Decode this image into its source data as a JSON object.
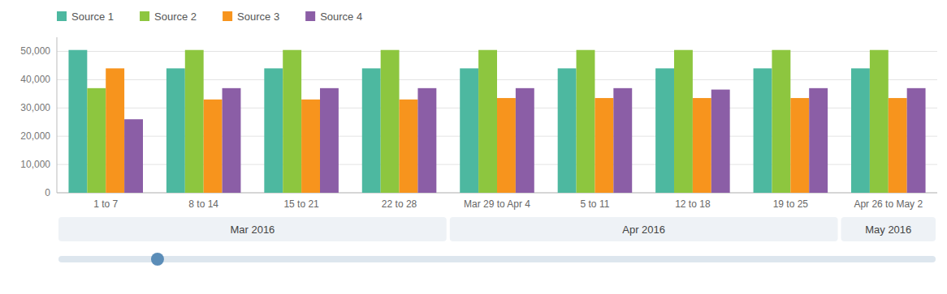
{
  "chart_data": {
    "type": "bar",
    "categories": [
      "1 to 7",
      "8 to 14",
      "15 to 21",
      "22 to 28",
      "Mar 29 to Apr 4",
      "5 to 11",
      "12 to 18",
      "19 to 25",
      "Apr 26 to May 2"
    ],
    "series": [
      {
        "name": "Source 1",
        "color": "#4db8a0",
        "values": [
          50500,
          44000,
          44000,
          44000,
          44000,
          44000,
          44000,
          44000,
          44000
        ]
      },
      {
        "name": "Source 2",
        "color": "#8dc63f",
        "values": [
          37000,
          50500,
          50500,
          50500,
          50500,
          50500,
          50500,
          50500,
          50500
        ]
      },
      {
        "name": "Source 3",
        "color": "#f7941d",
        "values": [
          44000,
          33000,
          33000,
          33000,
          33500,
          33500,
          33500,
          33500,
          33500
        ]
      },
      {
        "name": "Source 4",
        "color": "#8b5ea6",
        "values": [
          26000,
          37000,
          37000,
          37000,
          37000,
          37000,
          36500,
          37000,
          37000
        ]
      }
    ],
    "ylim": [
      0,
      55000
    ],
    "yticks": [
      0,
      {
        "value": 10000,
        "label": "10,000"
      },
      {
        "value": 20000,
        "label": "20,000"
      },
      {
        "value": 30000,
        "label": "30,000"
      },
      {
        "value": 40000,
        "label": "40,000"
      },
      {
        "value": 50000,
        "label": "50,000"
      }
    ],
    "grid": true,
    "legend": "top",
    "annotations": [
      {
        "text": "Mar 2016",
        "from": "1 to 7",
        "to": "22 to 28"
      },
      {
        "text": "Apr 2016",
        "from": "Mar 29 to Apr 4",
        "to": "19 to 25"
      },
      {
        "text": "May 2016",
        "from": "Apr 26 to May 2",
        "to": "Apr 26 to May 2"
      }
    ]
  }
}
